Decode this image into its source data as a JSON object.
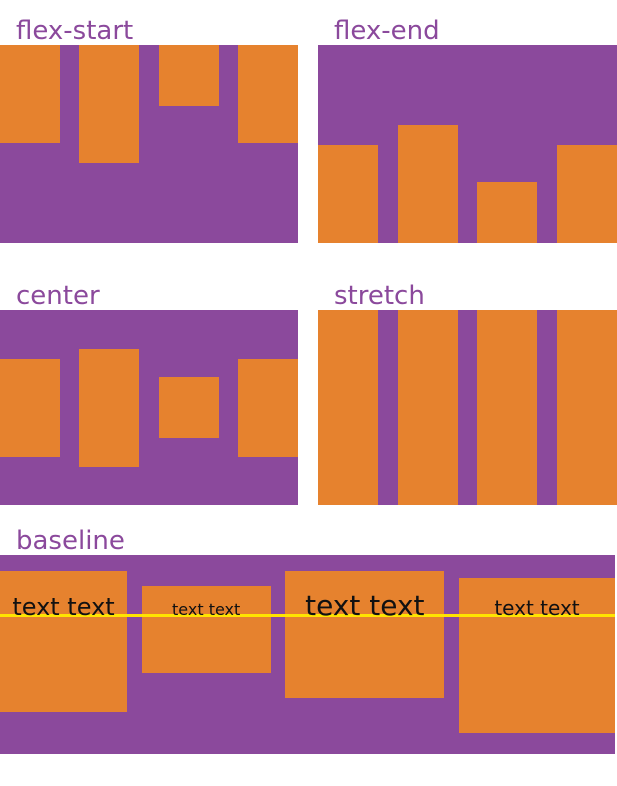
{
  "sections": [
    {
      "id": "flex-start",
      "label": "flex-start"
    },
    {
      "id": "flex-end",
      "label": "flex-end"
    },
    {
      "id": "center",
      "label": "center"
    },
    {
      "id": "stretch",
      "label": "stretch"
    },
    {
      "id": "baseline",
      "label": "baseline",
      "items": [
        {
          "text": "text text"
        },
        {
          "text": "text text"
        },
        {
          "text": "text text"
        },
        {
          "text": "text text"
        }
      ]
    }
  ],
  "colors": {
    "container_purple": "#8b499c",
    "item_orange": "#e6822e",
    "label_purple": "#8b499c",
    "baseline_line_yellow": "#ffe400",
    "item_text": "#111111",
    "page_background": "#ffffff"
  }
}
